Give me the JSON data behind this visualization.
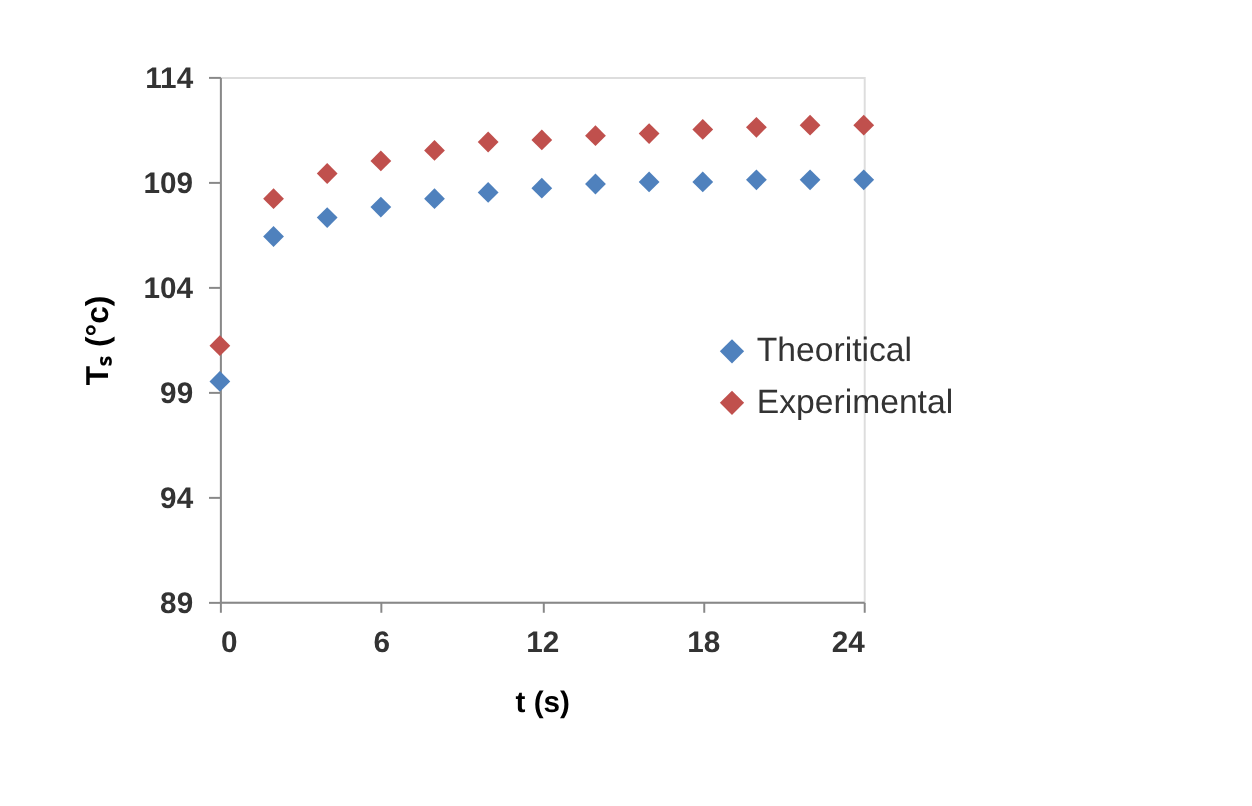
{
  "chart_data": {
    "type": "scatter",
    "xlabel": "t (s)",
    "ylabel": "Tₛ (°c)",
    "x": [
      0,
      2,
      4,
      6,
      8,
      10,
      12,
      14,
      16,
      18,
      20,
      22,
      24
    ],
    "series": [
      {
        "name": "Theoritical",
        "color": "#4f81bd",
        "values": [
          99.5,
          106.4,
          107.3,
          107.8,
          108.2,
          108.5,
          108.7,
          108.9,
          109.0,
          109.0,
          109.1,
          109.1,
          109.1
        ]
      },
      {
        "name": "Experimental",
        "color": "#c0504d",
        "values": [
          101.2,
          108.2,
          109.4,
          110.0,
          110.5,
          110.9,
          111.0,
          111.2,
          111.3,
          111.5,
          111.6,
          111.7,
          111.7
        ]
      }
    ],
    "xlim": [
      0,
      24
    ],
    "xticks": [
      0,
      6,
      12,
      18,
      24
    ],
    "ylim": [
      89,
      114
    ],
    "yticks": [
      89,
      94,
      99,
      104,
      109,
      114
    ],
    "marker": "diamond",
    "grid": false,
    "legend": "right"
  }
}
